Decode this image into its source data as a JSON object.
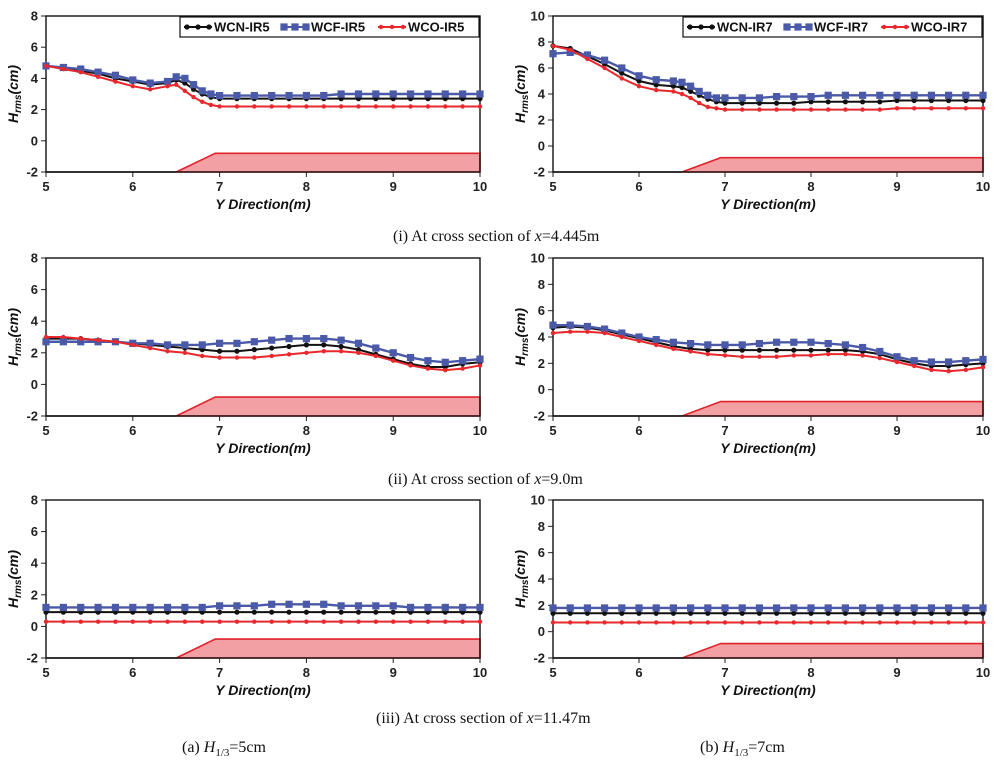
{
  "section_captions": [
    {
      "prefix": "(i) At cross section of ",
      "var": "x",
      "value": "=4.445m"
    },
    {
      "prefix": "(ii) At cross section of ",
      "var": "x",
      "value": "=9.0m"
    },
    {
      "prefix": "(iii) At cross section of ",
      "var": "x",
      "value": "=11.47m"
    }
  ],
  "column_captions": [
    {
      "prefix": "(a) ",
      "var": "H",
      "sub": "1/3",
      "value": "=5cm"
    },
    {
      "prefix": "(b) ",
      "var": "H",
      "sub": "1/3",
      "value": "=7cm"
    }
  ],
  "colors": {
    "WCN": "#111111",
    "WCF": "#4a5aa8",
    "WCO": "#e8282d",
    "fill": "#f2a0a4",
    "edge": "#e0232b"
  },
  "chart_data": [
    {
      "id": "a-i",
      "type": "line",
      "xlabel": "Y Direction(m)",
      "ylabel": {
        "main": "H",
        "sub": "rms",
        "unit": "(cm)"
      },
      "xlim": [
        5,
        10
      ],
      "ylim": [
        -2,
        8
      ],
      "xticks": [
        5,
        6,
        7,
        8,
        9,
        10
      ],
      "yticks": [
        -2,
        0,
        2,
        4,
        6,
        8
      ],
      "legend": "top-right",
      "bed": {
        "x": [
          6.5,
          6.95,
          10
        ],
        "y": [
          -2,
          -0.8,
          -0.8
        ]
      },
      "x": [
        5,
        5.2,
        5.4,
        5.6,
        5.8,
        6,
        6.2,
        6.4,
        6.5,
        6.6,
        6.7,
        6.8,
        6.9,
        7,
        7.2,
        7.4,
        7.6,
        7.8,
        8,
        8.2,
        8.4,
        8.6,
        8.8,
        9,
        9.2,
        9.4,
        9.6,
        9.8,
        10
      ],
      "series": [
        {
          "name": "WCN-IR5",
          "key": "WCN",
          "values": [
            4.8,
            4.7,
            4.5,
            4.3,
            4.0,
            3.8,
            3.6,
            3.7,
            3.9,
            3.7,
            3.3,
            3.0,
            2.8,
            2.7,
            2.7,
            2.7,
            2.7,
            2.7,
            2.7,
            2.7,
            2.7,
            2.7,
            2.7,
            2.7,
            2.7,
            2.7,
            2.7,
            2.7,
            2.7
          ]
        },
        {
          "name": "WCF-IR5",
          "key": "WCF",
          "values": [
            4.8,
            4.7,
            4.6,
            4.4,
            4.2,
            3.9,
            3.7,
            3.8,
            4.1,
            4.0,
            3.6,
            3.2,
            3.0,
            2.9,
            2.9,
            2.9,
            2.9,
            2.9,
            2.9,
            2.9,
            3.0,
            3.0,
            3.0,
            3.0,
            3.0,
            3.0,
            3.0,
            3.0,
            3.0
          ]
        },
        {
          "name": "WCO-IR5",
          "key": "WCO",
          "values": [
            4.8,
            4.6,
            4.4,
            4.1,
            3.8,
            3.5,
            3.3,
            3.5,
            3.6,
            3.2,
            2.8,
            2.5,
            2.3,
            2.2,
            2.2,
            2.2,
            2.2,
            2.2,
            2.2,
            2.2,
            2.2,
            2.2,
            2.2,
            2.2,
            2.2,
            2.2,
            2.2,
            2.2,
            2.2
          ]
        }
      ]
    },
    {
      "id": "b-i",
      "type": "line",
      "xlabel": "Y Direction(m)",
      "ylabel": {
        "main": "H",
        "sub": "rms",
        "unit": "(cm)"
      },
      "xlim": [
        5,
        10
      ],
      "ylim": [
        -2,
        10
      ],
      "xticks": [
        5,
        6,
        7,
        8,
        9,
        10
      ],
      "yticks": [
        -2,
        0,
        2,
        4,
        6,
        8,
        10
      ],
      "legend": "top-right",
      "bed": {
        "x": [
          6.5,
          6.95,
          10
        ],
        "y": [
          -2,
          -0.9,
          -0.9
        ]
      },
      "x": [
        5,
        5.2,
        5.4,
        5.6,
        5.8,
        6,
        6.2,
        6.4,
        6.5,
        6.6,
        6.7,
        6.8,
        6.9,
        7,
        7.2,
        7.4,
        7.6,
        7.8,
        8,
        8.2,
        8.4,
        8.6,
        8.8,
        9,
        9.2,
        9.4,
        9.6,
        9.8,
        10
      ],
      "series": [
        {
          "name": "WCN-IR7",
          "key": "WCN",
          "values": [
            7.7,
            7.5,
            6.9,
            6.3,
            5.6,
            5.0,
            4.7,
            4.6,
            4.5,
            4.2,
            3.9,
            3.6,
            3.4,
            3.3,
            3.3,
            3.3,
            3.3,
            3.3,
            3.4,
            3.4,
            3.4,
            3.4,
            3.4,
            3.5,
            3.5,
            3.5,
            3.5,
            3.5,
            3.5
          ]
        },
        {
          "name": "WCF-IR7",
          "key": "WCF",
          "values": [
            7.1,
            7.2,
            7.0,
            6.6,
            6.0,
            5.4,
            5.1,
            5.0,
            4.9,
            4.6,
            4.2,
            3.9,
            3.7,
            3.7,
            3.7,
            3.7,
            3.8,
            3.8,
            3.8,
            3.9,
            3.9,
            3.9,
            3.9,
            3.9,
            3.9,
            3.9,
            3.9,
            3.9,
            3.9
          ]
        },
        {
          "name": "WCO-IR7",
          "key": "WCO",
          "values": [
            7.7,
            7.4,
            6.7,
            6.0,
            5.2,
            4.6,
            4.3,
            4.2,
            4.0,
            3.7,
            3.3,
            3.0,
            2.9,
            2.8,
            2.8,
            2.8,
            2.8,
            2.8,
            2.8,
            2.8,
            2.8,
            2.8,
            2.8,
            2.9,
            2.9,
            2.9,
            2.9,
            2.9,
            2.9
          ]
        }
      ]
    },
    {
      "id": "a-ii",
      "type": "line",
      "xlabel": "Y Direction(m)",
      "ylabel": {
        "main": "H",
        "sub": "rms",
        "unit": "(cm)"
      },
      "xlim": [
        5,
        10
      ],
      "ylim": [
        -2,
        8
      ],
      "xticks": [
        5,
        6,
        7,
        8,
        9,
        10
      ],
      "yticks": [
        -2,
        0,
        2,
        4,
        6,
        8
      ],
      "legend": "none",
      "bed": {
        "x": [
          6.5,
          6.95,
          10
        ],
        "y": [
          -2,
          -0.8,
          -0.8
        ]
      },
      "x": [
        5,
        5.2,
        5.4,
        5.6,
        5.8,
        6,
        6.2,
        6.4,
        6.6,
        6.8,
        7,
        7.2,
        7.4,
        7.6,
        7.8,
        8,
        8.2,
        8.4,
        8.6,
        8.8,
        9,
        9.2,
        9.4,
        9.6,
        9.8,
        10
      ],
      "series": [
        {
          "name": "WCN-IR5",
          "key": "WCN",
          "values": [
            2.9,
            2.9,
            2.9,
            2.8,
            2.7,
            2.6,
            2.5,
            2.4,
            2.3,
            2.2,
            2.1,
            2.1,
            2.2,
            2.3,
            2.4,
            2.5,
            2.5,
            2.4,
            2.2,
            1.9,
            1.6,
            1.3,
            1.1,
            1.1,
            1.3,
            1.4
          ]
        },
        {
          "name": "WCF-IR5",
          "key": "WCF",
          "values": [
            2.7,
            2.7,
            2.7,
            2.7,
            2.7,
            2.6,
            2.6,
            2.5,
            2.5,
            2.5,
            2.6,
            2.6,
            2.7,
            2.8,
            2.9,
            2.9,
            2.9,
            2.8,
            2.6,
            2.3,
            2.0,
            1.7,
            1.5,
            1.4,
            1.5,
            1.6
          ]
        },
        {
          "name": "WCO-IR5",
          "key": "WCO",
          "values": [
            3.0,
            3.0,
            2.9,
            2.8,
            2.7,
            2.5,
            2.3,
            2.1,
            2.0,
            1.8,
            1.7,
            1.7,
            1.7,
            1.8,
            1.9,
            2.0,
            2.1,
            2.1,
            2.0,
            1.8,
            1.5,
            1.2,
            1.0,
            0.9,
            1.0,
            1.2
          ]
        }
      ]
    },
    {
      "id": "b-ii",
      "type": "line",
      "xlabel": "Y Direction(m)",
      "ylabel": {
        "main": "H",
        "sub": "rms",
        "unit": "(cm)"
      },
      "xlim": [
        5,
        10
      ],
      "ylim": [
        -2,
        10
      ],
      "xticks": [
        5,
        6,
        7,
        8,
        9,
        10
      ],
      "yticks": [
        -2,
        0,
        2,
        4,
        6,
        8,
        10
      ],
      "legend": "none",
      "bed": {
        "x": [
          6.5,
          6.95,
          10
        ],
        "y": [
          -2,
          -0.9,
          -0.9
        ]
      },
      "x": [
        5,
        5.2,
        5.4,
        5.6,
        5.8,
        6,
        6.2,
        6.4,
        6.6,
        6.8,
        7,
        7.2,
        7.4,
        7.6,
        7.8,
        8,
        8.2,
        8.4,
        8.6,
        8.8,
        9,
        9.2,
        9.4,
        9.6,
        9.8,
        10
      ],
      "series": [
        {
          "name": "WCN-IR7",
          "key": "WCN",
          "values": [
            4.7,
            4.8,
            4.7,
            4.5,
            4.2,
            3.9,
            3.6,
            3.3,
            3.1,
            3.0,
            3.0,
            3.0,
            3.0,
            3.0,
            3.0,
            3.0,
            3.0,
            3.0,
            2.9,
            2.7,
            2.3,
            2.0,
            1.8,
            1.8,
            1.9,
            2.0
          ]
        },
        {
          "name": "WCF-IR7",
          "key": "WCF",
          "values": [
            4.9,
            4.9,
            4.8,
            4.6,
            4.3,
            4.0,
            3.8,
            3.6,
            3.5,
            3.4,
            3.4,
            3.4,
            3.5,
            3.6,
            3.6,
            3.6,
            3.5,
            3.4,
            3.2,
            2.9,
            2.5,
            2.2,
            2.1,
            2.1,
            2.2,
            2.3
          ]
        },
        {
          "name": "WCO-IR7",
          "key": "WCO",
          "values": [
            4.3,
            4.4,
            4.4,
            4.3,
            4.0,
            3.7,
            3.4,
            3.1,
            2.9,
            2.7,
            2.6,
            2.5,
            2.5,
            2.5,
            2.6,
            2.6,
            2.7,
            2.7,
            2.6,
            2.4,
            2.1,
            1.8,
            1.5,
            1.4,
            1.5,
            1.7
          ]
        }
      ]
    },
    {
      "id": "a-iii",
      "type": "line",
      "xlabel": "Y Direction(m)",
      "ylabel": {
        "main": "H",
        "sub": "rms",
        "unit": "(cm)"
      },
      "xlim": [
        5,
        10
      ],
      "ylim": [
        -2,
        8
      ],
      "xticks": [
        5,
        6,
        7,
        8,
        9,
        10
      ],
      "yticks": [
        -2,
        0,
        2,
        4,
        6,
        8
      ],
      "legend": "none",
      "bed": {
        "x": [
          6.5,
          6.95,
          10
        ],
        "y": [
          -2,
          -0.8,
          -0.8
        ]
      },
      "x": [
        5,
        5.2,
        5.4,
        5.6,
        5.8,
        6,
        6.2,
        6.4,
        6.6,
        6.8,
        7,
        7.2,
        7.4,
        7.6,
        7.8,
        8,
        8.2,
        8.4,
        8.6,
        8.8,
        9,
        9.2,
        9.4,
        9.6,
        9.8,
        10
      ],
      "series": [
        {
          "name": "WCN-IR5",
          "key": "WCN",
          "values": [
            0.9,
            0.9,
            0.9,
            0.9,
            0.9,
            0.9,
            0.9,
            0.9,
            0.9,
            0.9,
            0.9,
            0.9,
            0.9,
            0.9,
            0.9,
            0.9,
            0.9,
            0.9,
            0.9,
            0.9,
            0.9,
            0.9,
            0.9,
            0.9,
            0.9,
            0.9
          ]
        },
        {
          "name": "WCF-IR5",
          "key": "WCF",
          "values": [
            1.2,
            1.2,
            1.2,
            1.2,
            1.2,
            1.2,
            1.2,
            1.2,
            1.2,
            1.2,
            1.3,
            1.3,
            1.3,
            1.4,
            1.4,
            1.4,
            1.4,
            1.3,
            1.3,
            1.3,
            1.3,
            1.2,
            1.2,
            1.2,
            1.2,
            1.2
          ]
        },
        {
          "name": "WCO-IR5",
          "key": "WCO",
          "values": [
            0.3,
            0.3,
            0.3,
            0.3,
            0.3,
            0.3,
            0.3,
            0.3,
            0.3,
            0.3,
            0.3,
            0.3,
            0.3,
            0.3,
            0.3,
            0.3,
            0.3,
            0.3,
            0.3,
            0.3,
            0.3,
            0.3,
            0.3,
            0.3,
            0.3,
            0.3
          ]
        }
      ]
    },
    {
      "id": "b-iii",
      "type": "line",
      "xlabel": "Y Direction(m)",
      "ylabel": {
        "main": "H",
        "sub": "rms",
        "unit": "(cm)"
      },
      "xlim": [
        5,
        10
      ],
      "ylim": [
        -2,
        10
      ],
      "xticks": [
        5,
        6,
        7,
        8,
        9,
        10
      ],
      "yticks": [
        -2,
        0,
        2,
        4,
        6,
        8,
        10
      ],
      "legend": "none",
      "bed": {
        "x": [
          6.5,
          6.95,
          10
        ],
        "y": [
          -2,
          -0.9,
          -0.9
        ]
      },
      "x": [
        5,
        5.2,
        5.4,
        5.6,
        5.8,
        6,
        6.2,
        6.4,
        6.6,
        6.8,
        7,
        7.2,
        7.4,
        7.6,
        7.8,
        8,
        8.2,
        8.4,
        8.6,
        8.8,
        9,
        9.2,
        9.4,
        9.6,
        9.8,
        10
      ],
      "series": [
        {
          "name": "WCN-IR7",
          "key": "WCN",
          "values": [
            1.4,
            1.4,
            1.4,
            1.4,
            1.4,
            1.4,
            1.4,
            1.4,
            1.4,
            1.4,
            1.4,
            1.4,
            1.4,
            1.4,
            1.4,
            1.4,
            1.4,
            1.4,
            1.4,
            1.4,
            1.4,
            1.4,
            1.4,
            1.4,
            1.4,
            1.4
          ]
        },
        {
          "name": "WCF-IR7",
          "key": "WCF",
          "values": [
            1.8,
            1.8,
            1.8,
            1.8,
            1.8,
            1.8,
            1.8,
            1.8,
            1.8,
            1.8,
            1.8,
            1.8,
            1.8,
            1.8,
            1.8,
            1.8,
            1.8,
            1.8,
            1.8,
            1.8,
            1.8,
            1.8,
            1.8,
            1.8,
            1.8,
            1.8
          ]
        },
        {
          "name": "WCO-IR7",
          "key": "WCO",
          "values": [
            0.7,
            0.7,
            0.7,
            0.7,
            0.7,
            0.7,
            0.7,
            0.7,
            0.7,
            0.7,
            0.7,
            0.7,
            0.7,
            0.7,
            0.7,
            0.7,
            0.7,
            0.7,
            0.7,
            0.7,
            0.7,
            0.7,
            0.7,
            0.7,
            0.7,
            0.7
          ]
        }
      ]
    }
  ]
}
